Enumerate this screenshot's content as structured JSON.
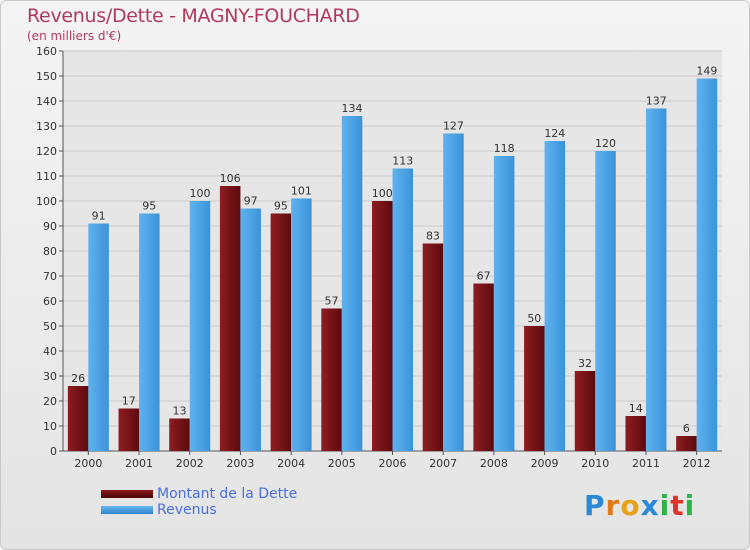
{
  "header": {
    "title": "Revenus/Dette - MAGNY-FOUCHARD",
    "subtitle": "(en milliers d'€)"
  },
  "chart_data": {
    "type": "bar",
    "title": "Revenus/Dette - MAGNY-FOUCHARD",
    "subtitle": "(en milliers d'€)",
    "categories": [
      "2000",
      "2001",
      "2002",
      "2003",
      "2004",
      "2005",
      "2006",
      "2007",
      "2008",
      "2009",
      "2010",
      "2011",
      "2012"
    ],
    "series": [
      {
        "name": "Montant de la Dette",
        "color": "#6b0d10",
        "values": [
          26,
          17,
          13,
          106,
          95,
          57,
          100,
          83,
          67,
          50,
          32,
          14,
          6
        ]
      },
      {
        "name": "Revenus",
        "color": "#3f9de3",
        "values": [
          91,
          95,
          100,
          97,
          101,
          134,
          113,
          127,
          118,
          124,
          120,
          137,
          149
        ]
      }
    ],
    "ylim": [
      0,
      160
    ],
    "yticks": [
      0,
      10,
      20,
      30,
      40,
      50,
      60,
      70,
      80,
      90,
      100,
      110,
      120,
      130,
      140,
      150,
      160
    ],
    "grid": true,
    "legend": "bottom-left"
  },
  "logo": {
    "letters": [
      "P",
      "r",
      "o",
      "x",
      "i",
      "t",
      "i"
    ],
    "colors": [
      "#2a8ad8",
      "#e07a18",
      "#e5a21a",
      "#2a8ad8",
      "#2db34a",
      "#e0332a",
      "#2db34a"
    ]
  }
}
